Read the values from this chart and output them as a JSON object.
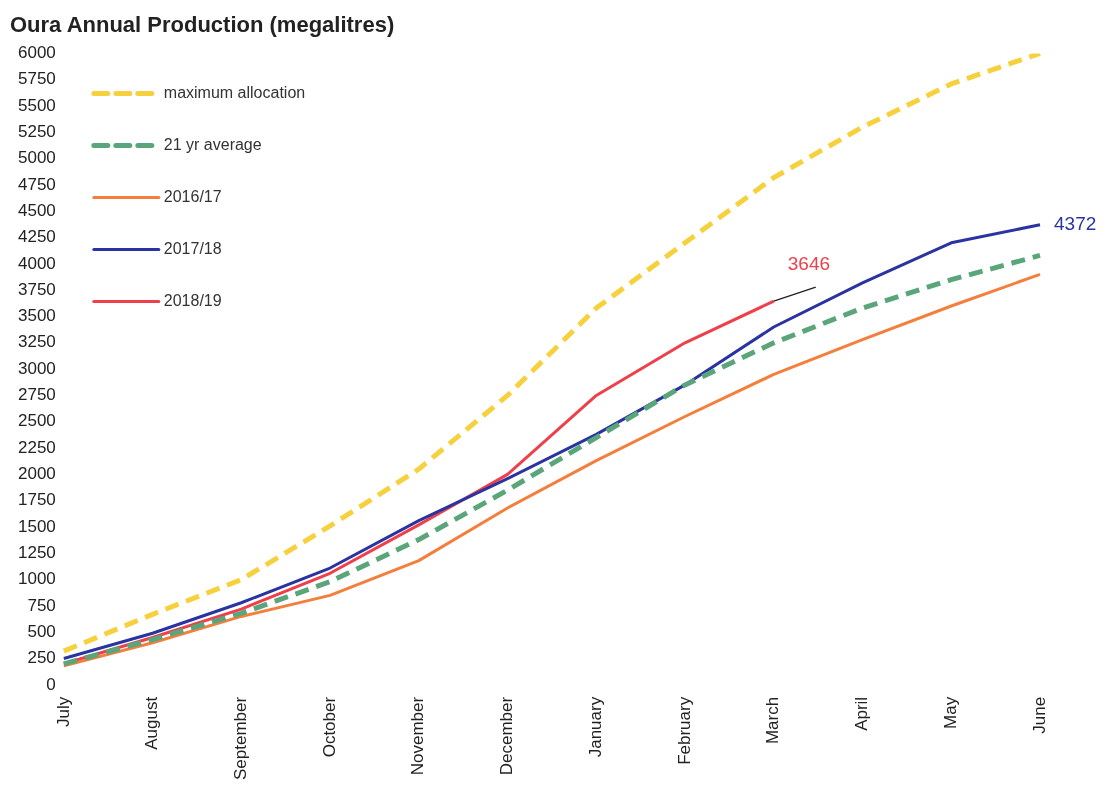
{
  "chart_data": {
    "type": "line",
    "title": "Oura Annual Production (megalitres)",
    "categories": [
      "July",
      "August",
      "September",
      "October",
      "November",
      "December",
      "January",
      "February",
      "March",
      "April",
      "May",
      "June"
    ],
    "ylim": [
      0,
      6000
    ],
    "yticks": [
      0,
      250,
      500,
      750,
      1000,
      1250,
      1500,
      1750,
      2000,
      2250,
      2500,
      2750,
      3000,
      3250,
      3500,
      3750,
      4000,
      4250,
      4500,
      4750,
      5000,
      5250,
      5500,
      5750,
      6000
    ],
    "grid": false,
    "legend": "top left",
    "marker": "none",
    "series": [
      {
        "name": "maximum allocation",
        "color": "#f7d13d",
        "line_style": "dashed",
        "values": [
          320,
          670,
          1000,
          1510,
          2050,
          2750,
          3580,
          4200,
          4820,
          5300,
          5710,
          6000
        ]
      },
      {
        "name": "21 yr average",
        "color": "#5aa67a",
        "line_style": "dashed",
        "values": [
          200,
          430,
          680,
          980,
          1380,
          1850,
          2350,
          2850,
          3250,
          3580,
          3850,
          4080
        ]
      },
      {
        "name": "2016/17",
        "color": "#f47f3c",
        "line_style": "solid",
        "values": [
          180,
          400,
          650,
          850,
          1180,
          1680,
          2130,
          2550,
          2950,
          3280,
          3600,
          3900
        ]
      },
      {
        "name": "2017/18",
        "color": "#2a34a0",
        "line_style": "solid",
        "values": [
          250,
          490,
          780,
          1110,
          1560,
          1960,
          2380,
          2850,
          3400,
          3820,
          4200,
          4372
        ]
      },
      {
        "name": "2018/19",
        "color": "#ee3f4a",
        "line_style": "solid",
        "values": [
          200,
          450,
          720,
          1060,
          1520,
          2000,
          2750,
          3250,
          3646,
          null,
          null,
          null
        ]
      }
    ],
    "annotations": [
      {
        "text": "3646",
        "x": "March",
        "y": 3646
      },
      {
        "text": "4372",
        "x": "June",
        "y": 4372
      }
    ]
  }
}
